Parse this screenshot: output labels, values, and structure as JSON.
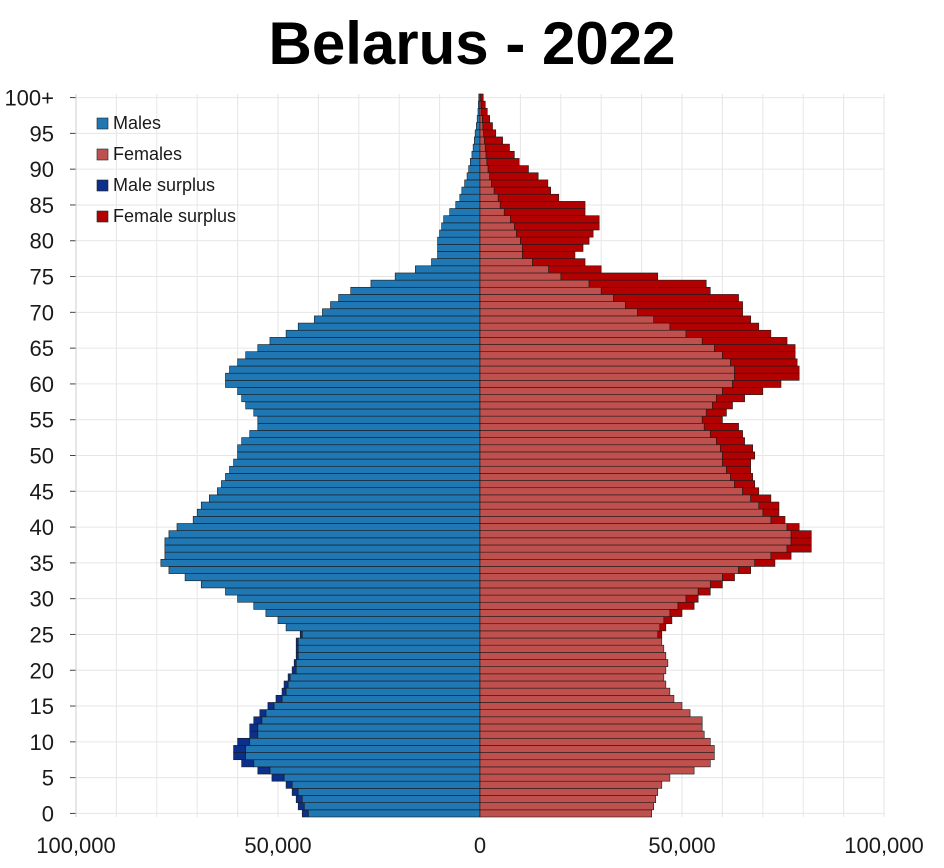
{
  "chart_data": {
    "type": "bar",
    "orientation": "horizontal",
    "title": "Belarus - 2022",
    "xlim": [
      -100000,
      100000
    ],
    "x_ticks": [
      {
        "value": -100000,
        "label": "100,000"
      },
      {
        "value": -50000,
        "label": "50,000"
      },
      {
        "value": 0,
        "label": "0"
      },
      {
        "value": 50000,
        "label": "50,000"
      },
      {
        "value": 100000,
        "label": "100,000"
      }
    ],
    "y_ticks": [
      {
        "age": 0,
        "label": "0"
      },
      {
        "age": 5,
        "label": "5"
      },
      {
        "age": 10,
        "label": "10"
      },
      {
        "age": 15,
        "label": "15"
      },
      {
        "age": 20,
        "label": "20"
      },
      {
        "age": 25,
        "label": "25"
      },
      {
        "age": 30,
        "label": "30"
      },
      {
        "age": 35,
        "label": "35"
      },
      {
        "age": 40,
        "label": "40"
      },
      {
        "age": 45,
        "label": "45"
      },
      {
        "age": 50,
        "label": "50"
      },
      {
        "age": 55,
        "label": "55"
      },
      {
        "age": 60,
        "label": "60"
      },
      {
        "age": 65,
        "label": "65"
      },
      {
        "age": 70,
        "label": "70"
      },
      {
        "age": 75,
        "label": "75"
      },
      {
        "age": 80,
        "label": "80"
      },
      {
        "age": 85,
        "label": "85"
      },
      {
        "age": 90,
        "label": "90"
      },
      {
        "age": 95,
        "label": "95"
      },
      {
        "age": 100,
        "label": "100+"
      }
    ],
    "grid": true,
    "legend_position": "top-left",
    "legend": [
      {
        "key": "males",
        "label": "Males",
        "color": "#1f77b4"
      },
      {
        "key": "females",
        "label": "Females",
        "color": "#c0504d"
      },
      {
        "key": "male_surplus",
        "label": "Male surplus",
        "color": "#0b2f8a"
      },
      {
        "key": "female_surplus",
        "label": "Female surplus",
        "color": "#b30000"
      }
    ],
    "colors": {
      "males": "#1f77b4",
      "females": "#c0504d",
      "male_surplus": "#0b2f8a",
      "female_surplus": "#b30000",
      "grid": "#e6e6e6",
      "bar_stroke": "#1a1a1a"
    },
    "ages": [
      0,
      1,
      2,
      3,
      4,
      5,
      6,
      7,
      8,
      9,
      10,
      11,
      12,
      13,
      14,
      15,
      16,
      17,
      18,
      19,
      20,
      21,
      22,
      23,
      24,
      25,
      26,
      27,
      28,
      29,
      30,
      31,
      32,
      33,
      34,
      35,
      36,
      37,
      38,
      39,
      40,
      41,
      42,
      43,
      44,
      45,
      46,
      47,
      48,
      49,
      50,
      51,
      52,
      53,
      54,
      55,
      56,
      57,
      58,
      59,
      60,
      61,
      62,
      63,
      64,
      65,
      66,
      67,
      68,
      69,
      70,
      71,
      72,
      73,
      74,
      75,
      76,
      77,
      78,
      79,
      80,
      81,
      82,
      83,
      84,
      85,
      86,
      87,
      88,
      89,
      90,
      91,
      92,
      93,
      94,
      95,
      96,
      97,
      98,
      99,
      100
    ],
    "series": [
      {
        "name": "Males",
        "values": [
          42500,
          43500,
          44000,
          45000,
          46500,
          48500,
          52000,
          56000,
          58000,
          58000,
          57000,
          55000,
          55000,
          54000,
          53000,
          51000,
          49000,
          48000,
          47500,
          47000,
          45500,
          45500,
          45000,
          45000,
          45000,
          44000,
          48000,
          50000,
          53000,
          56000,
          60000,
          63000,
          69000,
          73000,
          77000,
          79000,
          78000,
          78000,
          78000,
          77000,
          75000,
          71000,
          70000,
          69000,
          67000,
          65000,
          64000,
          63000,
          62000,
          61000,
          60000,
          60000,
          59000,
          57000,
          55000,
          55000,
          56000,
          58000,
          59000,
          60000,
          63000,
          63000,
          62000,
          60000,
          58000,
          55000,
          52000,
          48000,
          45000,
          41000,
          39000,
          37000,
          35000,
          32000,
          27000,
          21000,
          16000,
          12000,
          10500,
          10500,
          10500,
          10000,
          9500,
          9000,
          7500,
          6000,
          5000,
          4500,
          3800,
          3200,
          2800,
          2400,
          2000,
          1700,
          1400,
          1200,
          900,
          700,
          500,
          400,
          300
        ]
      },
      {
        "name": "Females",
        "values": [
          42500,
          43000,
          43500,
          44000,
          45000,
          47000,
          53000,
          57000,
          58000,
          58000,
          57000,
          55500,
          55000,
          55000,
          52000,
          50000,
          48000,
          47000,
          46000,
          45500,
          46000,
          46500,
          46000,
          45500,
          45000,
          44000,
          44500,
          45500,
          47000,
          49000,
          51000,
          54000,
          57000,
          60000,
          64000,
          68000,
          72000,
          76000,
          77000,
          77000,
          76000,
          72000,
          70000,
          69000,
          67000,
          65000,
          63000,
          62000,
          61000,
          60000,
          60000,
          59500,
          58500,
          57000,
          55500,
          55000,
          56000,
          57500,
          58500,
          60000,
          62500,
          63000,
          63000,
          62000,
          60000,
          58000,
          55000,
          51000,
          47000,
          43000,
          39000,
          36000,
          33000,
          30000,
          27000,
          20000,
          17000,
          13000,
          10500,
          10500,
          10000,
          9000,
          8500,
          7500,
          6000,
          5000,
          4500,
          3500,
          2800,
          2400,
          2000,
          1700,
          1500,
          1300,
          1100,
          900,
          700,
          600,
          400,
          300,
          200
        ]
      },
      {
        "name": "Male surplus",
        "values": [
          1500,
          1500,
          1500,
          1500,
          1500,
          3000,
          3000,
          3000,
          3000,
          3000,
          3000,
          2000,
          2000,
          2000,
          1500,
          1500,
          1500,
          1000,
          1000,
          500,
          1000,
          500,
          500,
          500,
          500,
          500,
          0,
          0,
          0,
          0,
          0,
          0,
          0,
          0,
          0,
          0,
          0,
          0,
          0,
          0,
          0,
          0,
          0,
          0,
          0,
          0,
          0,
          0,
          0,
          0,
          0,
          0,
          0,
          0,
          0,
          0,
          0,
          0,
          0,
          0,
          0,
          0,
          0,
          0,
          0,
          0,
          0,
          0,
          0,
          0,
          0,
          0,
          0,
          0,
          0,
          0,
          0,
          0,
          0,
          0,
          0,
          0,
          0,
          0,
          0,
          0,
          0,
          0,
          0,
          0,
          0,
          0,
          0,
          0,
          0,
          0,
          0,
          0,
          0,
          0,
          0
        ]
      },
      {
        "name": "Female surplus",
        "values": [
          0,
          0,
          0,
          0,
          0,
          0,
          0,
          0,
          0,
          0,
          0,
          0,
          0,
          0,
          0,
          0,
          0,
          0,
          0,
          0,
          0,
          0,
          0,
          0,
          0,
          1000,
          1500,
          2000,
          3000,
          4000,
          3000,
          3000,
          3000,
          3000,
          3000,
          5000,
          5000,
          6000,
          5000,
          5000,
          3000,
          3500,
          4000,
          5000,
          5000,
          4000,
          5000,
          5500,
          6000,
          7000,
          8000,
          8000,
          7000,
          8000,
          8500,
          5000,
          5000,
          5000,
          7000,
          10000,
          12000,
          16000,
          16000,
          16500,
          18000,
          20000,
          21000,
          21000,
          22000,
          24000,
          26000,
          29000,
          31000,
          27000,
          29000,
          24000,
          13000,
          13000,
          13000,
          15000,
          17000,
          19000,
          21000,
          22000,
          20000,
          21000,
          15000,
          14000,
          14000,
          12000,
          10000,
          8000,
          7000,
          6000,
          4500,
          3000,
          2400,
          1800,
          1400,
          1000,
          600
        ]
      }
    ]
  }
}
